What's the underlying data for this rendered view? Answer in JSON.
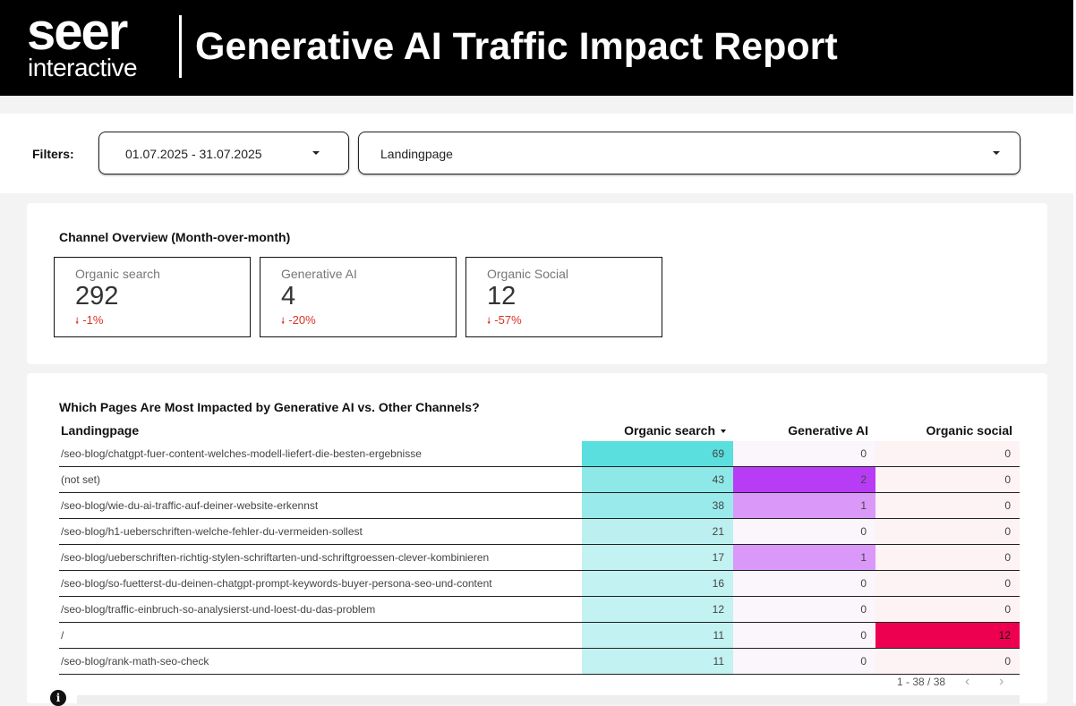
{
  "header": {
    "logo_line1": "seer",
    "logo_line2": "interactive",
    "title": "Generative AI Traffic Impact Report"
  },
  "filters": {
    "label": "Filters:",
    "date_range": "01.07.2025 - 31.07.2025",
    "landingpage": "Landingpage"
  },
  "overview": {
    "title": "Channel Overview (Month-over-month)",
    "cards": [
      {
        "label": "Organic search",
        "value": "292",
        "delta": "-1%"
      },
      {
        "label": "Generative AI",
        "value": "4",
        "delta": "-20%"
      },
      {
        "label": "Organic Social",
        "value": "12",
        "delta": "-57%"
      }
    ]
  },
  "pages_table": {
    "title": "Which Pages Are Most Impacted by Generative AI vs. Other Channels?",
    "columns": [
      "Landingpage",
      "Organic search",
      "Generative AI",
      "Organic social"
    ],
    "rows": [
      {
        "page": "/seo-blog/chatgpt-fuer-content-welches-modell-liefert-die-besten-ergebnisse",
        "organic": "69",
        "genai": "0",
        "social": "0"
      },
      {
        "page": "(not set)",
        "organic": "43",
        "genai": "2",
        "social": "0"
      },
      {
        "page": "/seo-blog/wie-du-ai-traffic-auf-deiner-website-erkennst",
        "organic": "38",
        "genai": "1",
        "social": "0"
      },
      {
        "page": "/seo-blog/h1-ueberschriften-welche-fehler-du-vermeiden-sollest",
        "organic": "21",
        "genai": "0",
        "social": "0"
      },
      {
        "page": "/seo-blog/ueberschriften-richtig-stylen-schriftarten-und-schriftgroessen-clever-kombinieren",
        "organic": "17",
        "genai": "1",
        "social": "0"
      },
      {
        "page": "/seo-blog/so-fuetterst-du-deinen-chatgpt-prompt-keywords-buyer-persona-seo-und-content",
        "organic": "16",
        "genai": "0",
        "social": "0"
      },
      {
        "page": "/seo-blog/traffic-einbruch-so-analysierst-und-loest-du-das-problem",
        "organic": "12",
        "genai": "0",
        "social": "0"
      },
      {
        "page": "/",
        "organic": "11",
        "genai": "0",
        "social": "12"
      },
      {
        "page": "/seo-blog/rank-math-seo-check",
        "organic": "11",
        "genai": "0",
        "social": "0"
      }
    ],
    "pagination": "1 - 38 / 38"
  },
  "colors": {
    "organic_heat": "#5bdede",
    "genai_heat": "#b83bf5",
    "social_heat": "#ee0051",
    "delta_negative": "#d93025"
  }
}
